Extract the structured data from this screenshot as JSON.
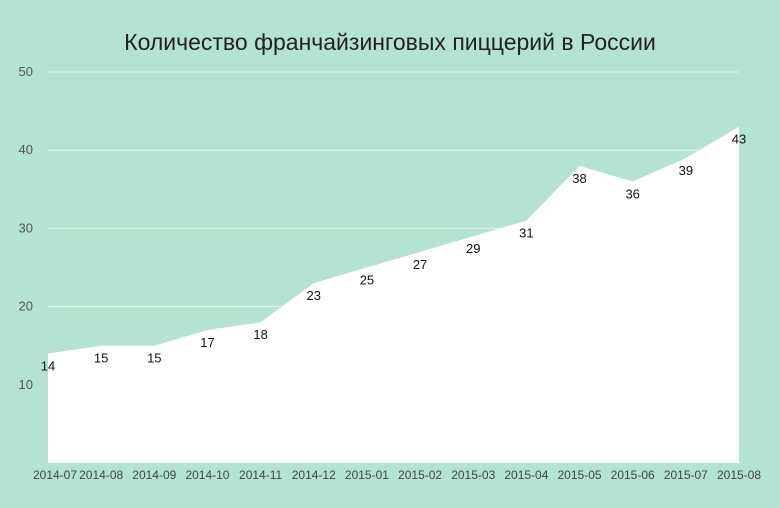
{
  "chart_data": {
    "type": "area",
    "title": "Количество франчайзинговых пиццерий в России",
    "xlabel": "",
    "ylabel": "",
    "categories": [
      "2014-07",
      "2014-08",
      "2014-09",
      "2014-10",
      "2014-11",
      "2014-12",
      "2015-01",
      "2015-02",
      "2015-03",
      "2015-04",
      "2015-05",
      "2015-06",
      "2015-07",
      "2015-08"
    ],
    "values": [
      14,
      15,
      15,
      17,
      18,
      23,
      25,
      27,
      29,
      31,
      38,
      36,
      39,
      43
    ],
    "data_labels": [
      "14",
      "15",
      "15",
      "17",
      "18",
      "23",
      "25",
      "27",
      "29",
      "31",
      "38",
      "36",
      "39",
      "43"
    ],
    "y_ticks": [
      10,
      20,
      30,
      40,
      50
    ],
    "y_tick_labels": [
      "10",
      "20",
      "30",
      "40",
      "50"
    ],
    "ylim": [
      0,
      50
    ],
    "grid": true,
    "legend": "none",
    "colors": {
      "background": "#b4e3d1",
      "area_fill": "#ffffff",
      "grid": "#e6f5ee"
    }
  }
}
